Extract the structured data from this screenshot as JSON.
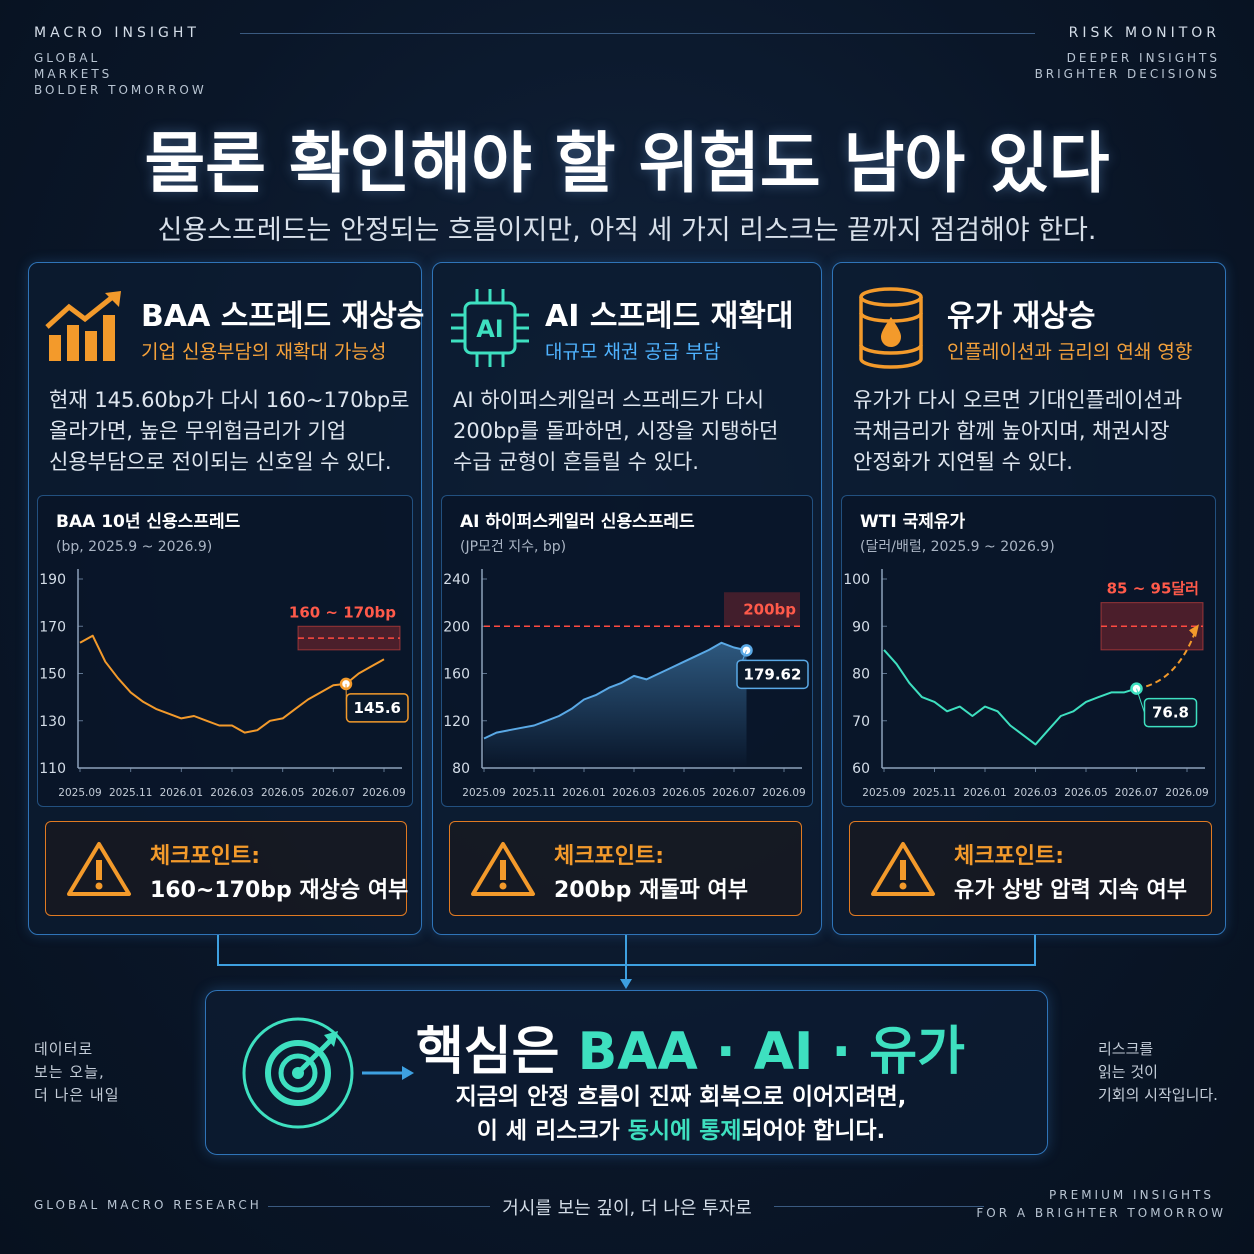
{
  "header": {
    "left": [
      "MACRO INSIGHT",
      "GLOBAL",
      "MARKETS",
      "BOLDER TOMORROW"
    ],
    "right": [
      "RISK MONITOR",
      "DEEPER INSIGHTS",
      "BRIGHTER DECISIONS"
    ],
    "title": "물론 확인해야 할 위험도 남아 있다",
    "subtitle": "신용스프레드는 안정되는 흐름이지만, 아직 세 가지 리스크는 끝까지 점검해야 한다."
  },
  "cards": [
    {
      "title": "BAA 스프레드 재상승",
      "subtitle": "기업 신용부담의 재확대 가능성",
      "body": [
        "현재 145.60bp가 다시 160~170bp로",
        "올라가면, 높은 무위험금리가 기업",
        "신용부담으로 전이되는 신호일 수 있다."
      ],
      "checkpoint_label": "체크포인트:",
      "checkpoint": "160~170bp 재상승 여부"
    },
    {
      "icon_text": "AI",
      "title": "AI 스프레드 재확대",
      "subtitle": "대규모 채권 공급 부담",
      "body": [
        "AI 하이퍼스케일러 스프레드가 다시",
        "200bp를 돌파하면, 시장을 지탱하던",
        "수급 균형이 흔들릴 수 있다."
      ],
      "checkpoint_label": "체크포인트:",
      "checkpoint": "200bp 재돌파 여부"
    },
    {
      "title": "유가 재상승",
      "subtitle": "인플레이션과 금리의 연쇄 영향",
      "body": [
        "유가가 다시 오르면 기대인플레이션과",
        "국채금리가 함께 높아지며, 채권시장",
        "안정화가 지연될 수 있다."
      ],
      "checkpoint_label": "체크포인트:",
      "checkpoint": "유가 상방 압력 지속 여부"
    }
  ],
  "chart_data": [
    {
      "type": "line",
      "title": "BAA 10년 신용스프레드",
      "subtitle": "(bp, 2025.9 ~ 2026.9)",
      "color": "#f39a2b",
      "categories": [
        "2025.09",
        null,
        null,
        null,
        "2025.11",
        null,
        null,
        null,
        "2026.01",
        null,
        null,
        null,
        "2026.03",
        null,
        null,
        null,
        "2026.05",
        null,
        null,
        null,
        "2026.07",
        null,
        null,
        null,
        "2026.09"
      ],
      "values": [
        163,
        166,
        155,
        148,
        142,
        138,
        135,
        133,
        131,
        132,
        130,
        128,
        128,
        125,
        126,
        130,
        131,
        135,
        139,
        142,
        145,
        145.6,
        150,
        153,
        156
      ],
      "ylim": [
        110,
        190
      ],
      "yticks": [
        110,
        130,
        150,
        170,
        190
      ],
      "grid": false,
      "label_index": 21,
      "band": [
        160,
        170
      ],
      "band_label": "160 ~ 170bp"
    },
    {
      "type": "line",
      "title": "AI 하이퍼스케일러 신용스프레드",
      "subtitle": "(JP모건 지수, bp)",
      "color": "#5aa9e6",
      "area": true,
      "categories": [
        "2025.09",
        null,
        null,
        null,
        "2025.11",
        null,
        null,
        null,
        "2026.01",
        null,
        null,
        null,
        "2026.03",
        null,
        null,
        null,
        "2026.05",
        null,
        null,
        null,
        "2026.07",
        null,
        null,
        null,
        "2026.09"
      ],
      "values": [
        105,
        110,
        112,
        114,
        116,
        120,
        124,
        130,
        138,
        142,
        148,
        152,
        158,
        155,
        160,
        165,
        170,
        175,
        180,
        186,
        182,
        179.62,
        null,
        null,
        null
      ],
      "ylim": [
        80,
        240
      ],
      "yticks": [
        80,
        120,
        160,
        200,
        240
      ],
      "grid": false,
      "label_index": 21,
      "threshold": 200,
      "threshold_label": "200bp"
    },
    {
      "type": "line",
      "title": "WTI 국제유가",
      "subtitle": "(달러/배럴, 2025.9 ~ 2026.9)",
      "color": "#3ee0c0",
      "categories": [
        "2025.09",
        null,
        null,
        null,
        "2025.11",
        null,
        null,
        null,
        "2026.01",
        null,
        null,
        null,
        "2026.03",
        null,
        null,
        null,
        "2026.05",
        null,
        null,
        null,
        "2026.07",
        null,
        null,
        null,
        "2026.09"
      ],
      "values": [
        85,
        82,
        78,
        75,
        74,
        72,
        73,
        71,
        73,
        72,
        69,
        67,
        65,
        68,
        71,
        72,
        74,
        75,
        76,
        76,
        76.8,
        null,
        null,
        null,
        null
      ],
      "ylim": [
        60,
        100
      ],
      "yticks": [
        60,
        70,
        80,
        90,
        100
      ],
      "grid": false,
      "label_index": 20,
      "band": [
        85,
        95
      ],
      "band_label": "85 ~ 95달러",
      "projection": true
    }
  ],
  "summary": {
    "headline": [
      "핵심은",
      "BAA · AI · 유가"
    ],
    "line1": "지금의 안정 흐름이 진짜 회복으로 이어지려면,",
    "line2": [
      "이 세 리스크가",
      "동시에 통제",
      "되어야 합니다."
    ]
  },
  "side": {
    "left": [
      "데이터로",
      "보는 오늘,",
      "더 나은 내일"
    ],
    "right": [
      "리스크를",
      "읽는 것이",
      "기회의 시작입니다."
    ]
  },
  "footer": {
    "left": "GLOBAL MACRO RESEARCH",
    "center": "거시를 보는 깊이, 더 나은 투자로",
    "right": [
      "PREMIUM INSIGHTS",
      "FOR A BRIGHTER TOMORROW"
    ]
  }
}
